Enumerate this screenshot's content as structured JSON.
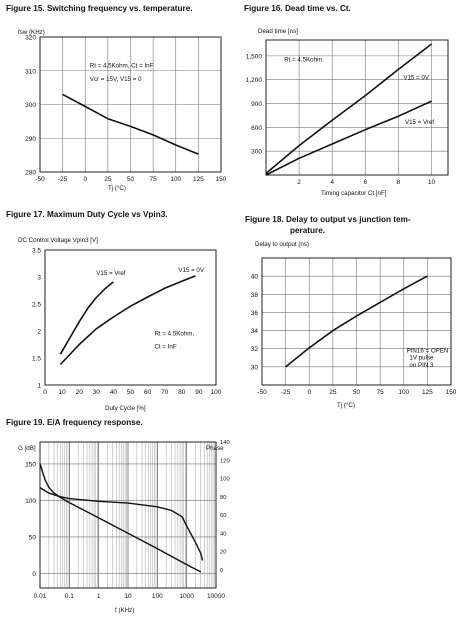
{
  "charts": [
    {
      "id": "fig15",
      "type": "line",
      "title": "Figure 15. Switching frequency vs. temperature.",
      "ylabel": "fsw (KHz)",
      "xlabel": "Tj (°C)",
      "xlim": [
        -50,
        150
      ],
      "ylim": [
        280,
        320
      ],
      "xticks": [
        -50,
        -25,
        0,
        25,
        50,
        75,
        100,
        125,
        150
      ],
      "xtick_labels": [
        "-50",
        "-25",
        "0",
        "25",
        "50",
        "75",
        "100",
        "125",
        "150"
      ],
      "yticks": [
        280,
        290,
        300,
        310,
        320
      ],
      "ytick_labels": [
        "280",
        "290",
        "300",
        "310",
        "320"
      ],
      "grid": true,
      "annotations": [
        {
          "text": "Rt = 4.5Kohm, Ct = InF",
          "x": 5,
          "y": 311
        },
        {
          "text": "Vcr = 15V, V15 = 0",
          "x": 5,
          "y": 307
        }
      ],
      "series": [
        {
          "points": [
            [
              -25,
              303
            ],
            [
              0,
              299.4
            ],
            [
              25,
              295.8
            ],
            [
              50,
              293.5
            ],
            [
              75,
              291
            ],
            [
              100,
              288
            ],
            [
              125,
              285.3
            ]
          ]
        }
      ]
    },
    {
      "id": "fig16",
      "type": "line",
      "title": "Figure 16. Dead time vs. Ct.",
      "ylabel": "Dead time [ns]",
      "xlabel": "Timing capacitor Ct [nF]",
      "xlim": [
        0,
        11
      ],
      "ylim": [
        0,
        1700
      ],
      "xticks": [
        2,
        4,
        6,
        8,
        10
      ],
      "xtick_labels": [
        "2",
        "4",
        "6",
        "8",
        "10"
      ],
      "yticks": [
        300,
        600,
        900,
        1200,
        1500
      ],
      "ytick_labels": [
        "300",
        "600",
        "900",
        "1,200",
        "1,500"
      ],
      "grid": true,
      "annotations": [
        {
          "text": "Rt = 4.5Kohm",
          "x": 1.1,
          "y": 1430
        },
        {
          "text": "V15 = 0V",
          "x": 8.3,
          "y": 1200
        },
        {
          "text": "V15 = Vref",
          "x": 8.4,
          "y": 640
        }
      ],
      "series": [
        {
          "name": "V15 = 0V",
          "points": [
            [
              0,
              20
            ],
            [
              2,
              370
            ],
            [
              4,
              690
            ],
            [
              6,
              1000
            ],
            [
              8,
              1330
            ],
            [
              10,
              1650
            ]
          ]
        },
        {
          "name": "V15 = Vref",
          "points": [
            [
              0,
              0
            ],
            [
              2,
              210
            ],
            [
              4,
              390
            ],
            [
              6,
              570
            ],
            [
              8,
              740
            ],
            [
              10,
              930
            ]
          ]
        }
      ]
    },
    {
      "id": "fig17",
      "type": "line",
      "title": "Figure 17. Maximum Duty Cycle vs Vpin3.",
      "ylabel": "DC Control Voltage Vpin3 [V]",
      "xlabel": "Duty Cycle [%]",
      "xlim": [
        0,
        100
      ],
      "ylim": [
        1,
        3.5
      ],
      "xticks": [
        0,
        10,
        20,
        30,
        40,
        50,
        60,
        70,
        80,
        90,
        100
      ],
      "xtick_labels": [
        "0",
        "10",
        "20",
        "30",
        "40",
        "50",
        "60",
        "70",
        "80",
        "90",
        "100"
      ],
      "yticks": [
        1,
        1.5,
        2,
        2.5,
        3,
        3.5
      ],
      "ytick_labels": [
        "1",
        "1.5",
        "2",
        "2.5",
        "3",
        "3.5"
      ],
      "grid": false,
      "annotations": [
        {
          "text": "V15 = Vref",
          "x": 30,
          "y": 3.04
        },
        {
          "text": "V15 = 0V",
          "x": 78,
          "y": 3.09
        },
        {
          "text": "Rt = 4.5Kohm,",
          "x": 64,
          "y": 1.92
        },
        {
          "text": "Ct = InF",
          "x": 64,
          "y": 1.68
        }
      ],
      "series": [
        {
          "name": "V15 = Vref",
          "points": [
            [
              9,
              1.57
            ],
            [
              15,
              1.9
            ],
            [
              20,
              2.17
            ],
            [
              25,
              2.42
            ],
            [
              30,
              2.62
            ],
            [
              35,
              2.78
            ],
            [
              40,
              2.91
            ]
          ]
        },
        {
          "name": "V15 = 0V",
          "points": [
            [
              9,
              1.38
            ],
            [
              20,
              1.75
            ],
            [
              30,
              2.04
            ],
            [
              40,
              2.26
            ],
            [
              50,
              2.46
            ],
            [
              60,
              2.63
            ],
            [
              70,
              2.79
            ],
            [
              80,
              2.92
            ],
            [
              88,
              3.02
            ]
          ]
        }
      ]
    },
    {
      "id": "fig18",
      "type": "line",
      "title": "Figure 18. Delay to output vs junction temperature.",
      "title_line1": "Figure 18. Delay to output vs junction tem-",
      "title_line2": "perature.",
      "ylabel": "Delay to output (ns)",
      "xlabel": "Tj (°C)",
      "xlim": [
        -50,
        150
      ],
      "ylim": [
        28,
        42
      ],
      "xticks": [
        -50,
        -25,
        0,
        25,
        50,
        75,
        100,
        125,
        150
      ],
      "xtick_labels": [
        "-50",
        "-25",
        "0",
        "25",
        "50",
        "75",
        "100",
        "125",
        "150"
      ],
      "yticks": [
        30,
        32,
        34,
        36,
        38,
        40
      ],
      "ytick_labels": [
        "30",
        "32",
        "34",
        "36",
        "38",
        "40"
      ],
      "grid": true,
      "annotations": [
        {
          "text": "PIN16 = OPEN",
          "x": 103,
          "y": 31.6
        },
        {
          "text": "1V pulse",
          "x": 106,
          "y": 30.8
        },
        {
          "text": "on PIN 3",
          "x": 106,
          "y": 30.0
        }
      ],
      "series": [
        {
          "points": [
            [
              -25,
              30
            ],
            [
              0,
              32.1
            ],
            [
              25,
              34
            ],
            [
              50,
              35.6
            ],
            [
              75,
              37.1
            ],
            [
              100,
              38.6
            ],
            [
              125,
              40
            ]
          ]
        }
      ]
    },
    {
      "id": "fig19",
      "type": "line",
      "title": "Figure 19. E/A frequency response.",
      "ylabel": "G [dB]",
      "ylabel_right": "Phase",
      "xlabel": "f (KHz)",
      "xscale": "log",
      "xlim": [
        0.01,
        10000
      ],
      "ylim": [
        -20,
        180
      ],
      "ylim_right": [
        -20,
        140
      ],
      "xticks": [
        0.01,
        0.1,
        1,
        10,
        100,
        1000,
        10000
      ],
      "xtick_labels": [
        "0.01",
        "0.1",
        "1",
        "10",
        "100",
        "1000",
        "10000"
      ],
      "yticks": [
        0,
        50,
        100,
        150
      ],
      "ytick_labels": [
        "0",
        "50",
        "100",
        "150"
      ],
      "yticks_right": [
        0,
        20,
        40,
        60,
        80,
        100,
        120,
        140
      ],
      "ytick_labels_right": [
        "0",
        "20",
        "40",
        "60",
        "80",
        "100",
        "120",
        "140"
      ],
      "grid": true,
      "series": [
        {
          "name": "Gain",
          "axis": "left",
          "points": [
            [
              0.01,
              150
            ],
            [
              0.015,
              128
            ],
            [
              0.02,
              118
            ],
            [
              0.03,
              110
            ],
            [
              0.05,
              104
            ],
            [
              0.1,
              97
            ],
            [
              1,
              76
            ],
            [
              10,
              55
            ],
            [
              100,
              34
            ],
            [
              1000,
              12
            ],
            [
              3000,
              2
            ]
          ]
        },
        {
          "name": "Phase",
          "axis": "right",
          "points": [
            [
              0.01,
              90
            ],
            [
              0.02,
              84
            ],
            [
              0.05,
              80
            ],
            [
              0.1,
              78
            ],
            [
              1,
              75
            ],
            [
              10,
              73
            ],
            [
              100,
              69
            ],
            [
              300,
              65
            ],
            [
              700,
              58
            ],
            [
              1000,
              48
            ],
            [
              2000,
              30
            ],
            [
              3000,
              18
            ],
            [
              3500,
              10
            ]
          ]
        }
      ]
    }
  ]
}
